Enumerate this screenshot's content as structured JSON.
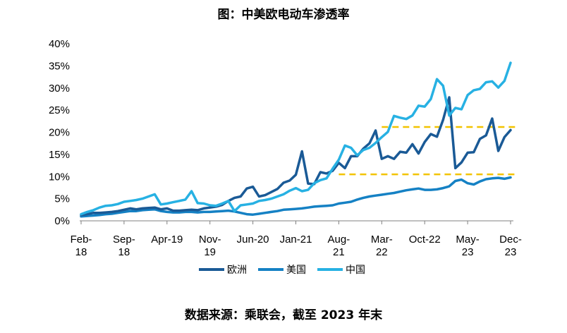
{
  "chart_data": {
    "type": "line",
    "title": "图：中美欧电动车渗透率",
    "xlabel": "",
    "ylabel": "",
    "ylim": [
      0,
      40
    ],
    "y_ticks": [
      "0%",
      "5%",
      "10%",
      "15%",
      "20%",
      "25%",
      "30%",
      "35%",
      "40%"
    ],
    "x_range": [
      0,
      70
    ],
    "x_ticks": [
      {
        "month": 0,
        "line1": "Feb-",
        "line2": "18"
      },
      {
        "month": 7,
        "line1": "Sep-",
        "line2": "18"
      },
      {
        "month": 14,
        "line1": "Apr-19",
        "line2": ""
      },
      {
        "month": 21,
        "line1": "Nov-",
        "line2": "19"
      },
      {
        "month": 28,
        "line1": "Jun-20",
        "line2": ""
      },
      {
        "month": 35,
        "line1": "Jan-21",
        "line2": ""
      },
      {
        "month": 42,
        "line1": "Aug-",
        "line2": "21"
      },
      {
        "month": 49,
        "line1": "Mar-",
        "line2": "22"
      },
      {
        "month": 56,
        "line1": "Oct-22",
        "line2": ""
      },
      {
        "month": 63,
        "line1": "May-",
        "line2": "23"
      },
      {
        "month": 70,
        "line1": "Dec-",
        "line2": "23"
      }
    ],
    "x": [
      0,
      1,
      2,
      3,
      4,
      5,
      6,
      7,
      8,
      9,
      10,
      11,
      12,
      13,
      14,
      15,
      16,
      17,
      18,
      19,
      20,
      21,
      22,
      23,
      24,
      25,
      26,
      27,
      28,
      29,
      30,
      31,
      32,
      33,
      34,
      35,
      36,
      37,
      38,
      39,
      40,
      41,
      42,
      43,
      44,
      45,
      46,
      47,
      48,
      49,
      50,
      51,
      52,
      53,
      54,
      55,
      56,
      57,
      58,
      59,
      60,
      61,
      62,
      63,
      64,
      65,
      66,
      67,
      68,
      69,
      70
    ],
    "series": [
      {
        "name": "欧洲",
        "color": "#1a5a96",
        "values": [
          1.3,
          1.5,
          1.8,
          1.8,
          1.9,
          2.0,
          2.2,
          2.5,
          2.8,
          2.6,
          2.8,
          2.9,
          3.0,
          2.6,
          2.8,
          2.3,
          2.3,
          2.4,
          2.5,
          2.4,
          2.8,
          3.0,
          3.2,
          3.6,
          4.5,
          5.2,
          5.5,
          7.3,
          7.7,
          5.5,
          5.8,
          6.5,
          7.2,
          8.6,
          9.1,
          10.4,
          15.7,
          8.4,
          8.3,
          11.0,
          10.7,
          11.3,
          13.1,
          11.9,
          14.6,
          14.6,
          16.3,
          17.5,
          20.4,
          14.0,
          14.6,
          14.0,
          15.6,
          15.4,
          17.3,
          15.2,
          17.8,
          19.6,
          19.0,
          22.8,
          27.9,
          11.9,
          13.2,
          15.4,
          15.5,
          18.5,
          19.3,
          23.1,
          15.8,
          18.9,
          20.5
        ]
      },
      {
        "name": "美国",
        "color": "#1581c4",
        "values": [
          1.0,
          1.1,
          1.2,
          1.3,
          1.5,
          1.6,
          1.8,
          2.0,
          2.2,
          2.2,
          2.4,
          2.5,
          2.6,
          2.2,
          2.0,
          1.9,
          1.9,
          2.0,
          2.0,
          1.9,
          2.0,
          2.0,
          2.1,
          2.2,
          2.3,
          2.1,
          1.8,
          1.5,
          1.4,
          1.6,
          1.8,
          2.0,
          2.2,
          2.5,
          2.6,
          2.7,
          2.8,
          3.0,
          3.2,
          3.3,
          3.4,
          3.5,
          3.9,
          4.1,
          4.3,
          4.8,
          5.2,
          5.5,
          5.7,
          5.9,
          6.1,
          6.3,
          6.6,
          6.9,
          7.1,
          7.3,
          7.0,
          7.0,
          7.1,
          7.4,
          7.8,
          9.0,
          9.3,
          8.5,
          8.2,
          8.9,
          9.4,
          9.6,
          9.7,
          9.5,
          9.8
        ]
      },
      {
        "name": "中国",
        "color": "#27b1e3",
        "values": [
          1.5,
          2.0,
          2.4,
          3.0,
          3.4,
          3.5,
          3.8,
          4.3,
          4.5,
          4.7,
          5.0,
          5.5,
          6.0,
          3.7,
          3.9,
          4.2,
          4.5,
          4.8,
          6.7,
          4.0,
          3.9,
          3.5,
          3.4,
          3.9,
          4.5,
          2.2,
          3.5,
          3.7,
          3.9,
          4.5,
          4.7,
          5.0,
          5.5,
          6.0,
          6.8,
          7.4,
          6.7,
          7.0,
          8.5,
          9.2,
          9.6,
          11.8,
          13.8,
          17.0,
          16.5,
          14.8,
          16.0,
          16.5,
          17.6,
          18.9,
          20.1,
          23.7,
          23.3,
          23.0,
          23.8,
          26.0,
          25.8,
          27.5,
          32.0,
          30.5,
          23.8,
          25.5,
          25.2,
          28.4,
          29.5,
          29.8,
          31.3,
          31.5,
          30.1,
          31.6,
          35.7
        ]
      }
    ],
    "reference_lines": [
      {
        "value": 21.2,
        "color": "#f2c300",
        "style": "dashed",
        "from_month": 49,
        "to_month": 70
      },
      {
        "value": 10.5,
        "color": "#f2c300",
        "style": "dashed",
        "from_month": 42,
        "to_month": 70
      }
    ]
  },
  "source_note": "数据来源：乘联会，截至 2023 年末"
}
